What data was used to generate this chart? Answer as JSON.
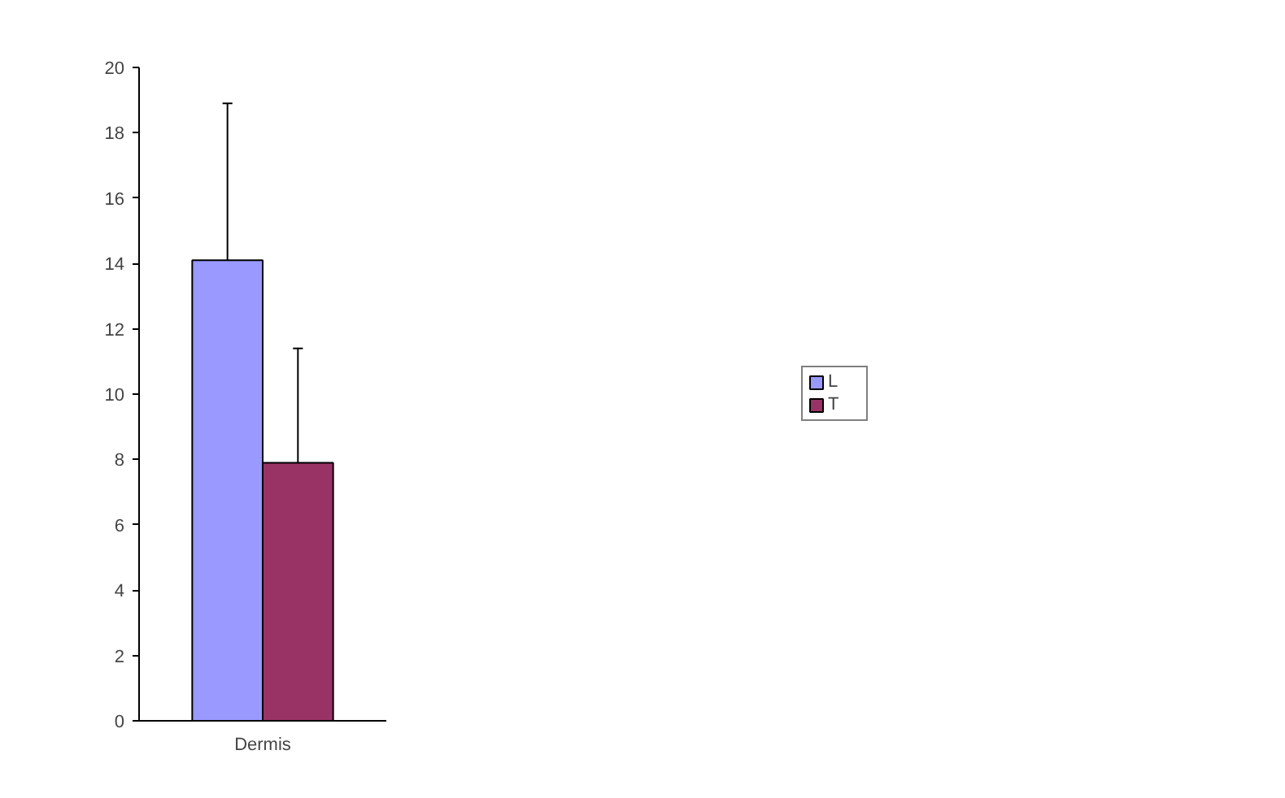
{
  "chart_data": {
    "type": "bar",
    "categories": [
      "Dermis"
    ],
    "series": [
      {
        "name": "L",
        "color": "#9999ff",
        "values": [
          14.1
        ],
        "errors": [
          [
            14.1,
            18.9
          ]
        ]
      },
      {
        "name": "T",
        "color": "#993366",
        "values": [
          7.9
        ],
        "errors": [
          [
            7.9,
            11.4
          ]
        ]
      }
    ],
    "ylim": [
      0,
      20
    ],
    "yticks": [
      0,
      2,
      4,
      6,
      8,
      10,
      12,
      14,
      16,
      18,
      20
    ],
    "grid": false,
    "legend": "right"
  }
}
